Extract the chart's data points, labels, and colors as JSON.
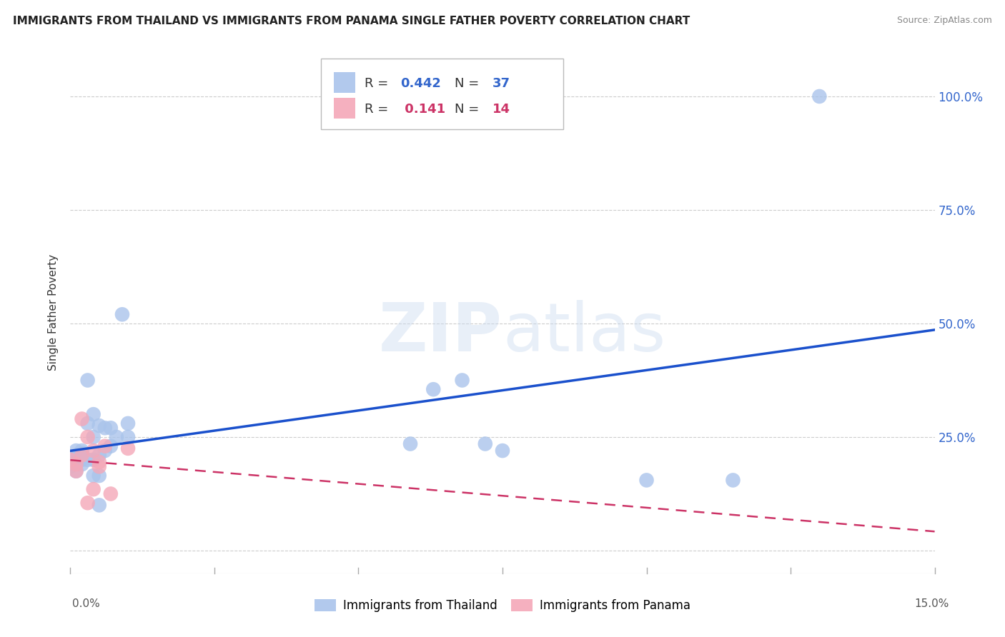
{
  "title": "IMMIGRANTS FROM THAILAND VS IMMIGRANTS FROM PANAMA SINGLE FATHER POVERTY CORRELATION CHART",
  "source": "Source: ZipAtlas.com",
  "ylabel": "Single Father Poverty",
  "x_min": 0.0,
  "x_max": 0.15,
  "y_min": -0.05,
  "y_max": 1.1,
  "thailand_R": 0.442,
  "thailand_N": 37,
  "panama_R": 0.141,
  "panama_N": 14,
  "legend_label_thailand": "Immigrants from Thailand",
  "legend_label_panama": "Immigrants from Panama",
  "thailand_color": "#aac4eb",
  "panama_color": "#f4a8b8",
  "thailand_line_color": "#1a50cc",
  "panama_line_color": "#cc3366",
  "watermark_zip": "ZIP",
  "watermark_atlas": "atlas",
  "thailand_x": [
    0.0,
    0.0,
    0.001,
    0.001,
    0.001,
    0.001,
    0.002,
    0.002,
    0.002,
    0.002,
    0.003,
    0.003,
    0.004,
    0.004,
    0.004,
    0.004,
    0.005,
    0.005,
    0.005,
    0.006,
    0.006,
    0.007,
    0.007,
    0.008,
    0.009,
    0.01,
    0.01,
    0.059,
    0.063,
    0.068,
    0.072,
    0.075,
    0.1,
    0.115,
    0.13,
    0.003,
    0.005
  ],
  "thailand_y": [
    0.195,
    0.185,
    0.21,
    0.22,
    0.2,
    0.175,
    0.215,
    0.22,
    0.19,
    0.2,
    0.28,
    0.2,
    0.3,
    0.25,
    0.2,
    0.165,
    0.275,
    0.21,
    0.165,
    0.27,
    0.22,
    0.27,
    0.23,
    0.25,
    0.52,
    0.25,
    0.28,
    0.235,
    0.355,
    0.375,
    0.235,
    0.22,
    0.155,
    0.155,
    1.0,
    0.375,
    0.1
  ],
  "panama_x": [
    0.0,
    0.001,
    0.001,
    0.002,
    0.002,
    0.003,
    0.003,
    0.004,
    0.004,
    0.005,
    0.005,
    0.006,
    0.007,
    0.01
  ],
  "panama_y": [
    0.2,
    0.19,
    0.175,
    0.29,
    0.21,
    0.25,
    0.105,
    0.22,
    0.135,
    0.195,
    0.185,
    0.23,
    0.125,
    0.225
  ],
  "y_ticks": [
    0.0,
    0.25,
    0.5,
    0.75,
    1.0
  ],
  "y_tick_labels": [
    "",
    "25.0%",
    "50.0%",
    "75.0%",
    "100.0%"
  ],
  "x_ticks": [
    0.0,
    0.15
  ],
  "x_tick_labels": [
    "0.0%",
    "15.0%"
  ]
}
